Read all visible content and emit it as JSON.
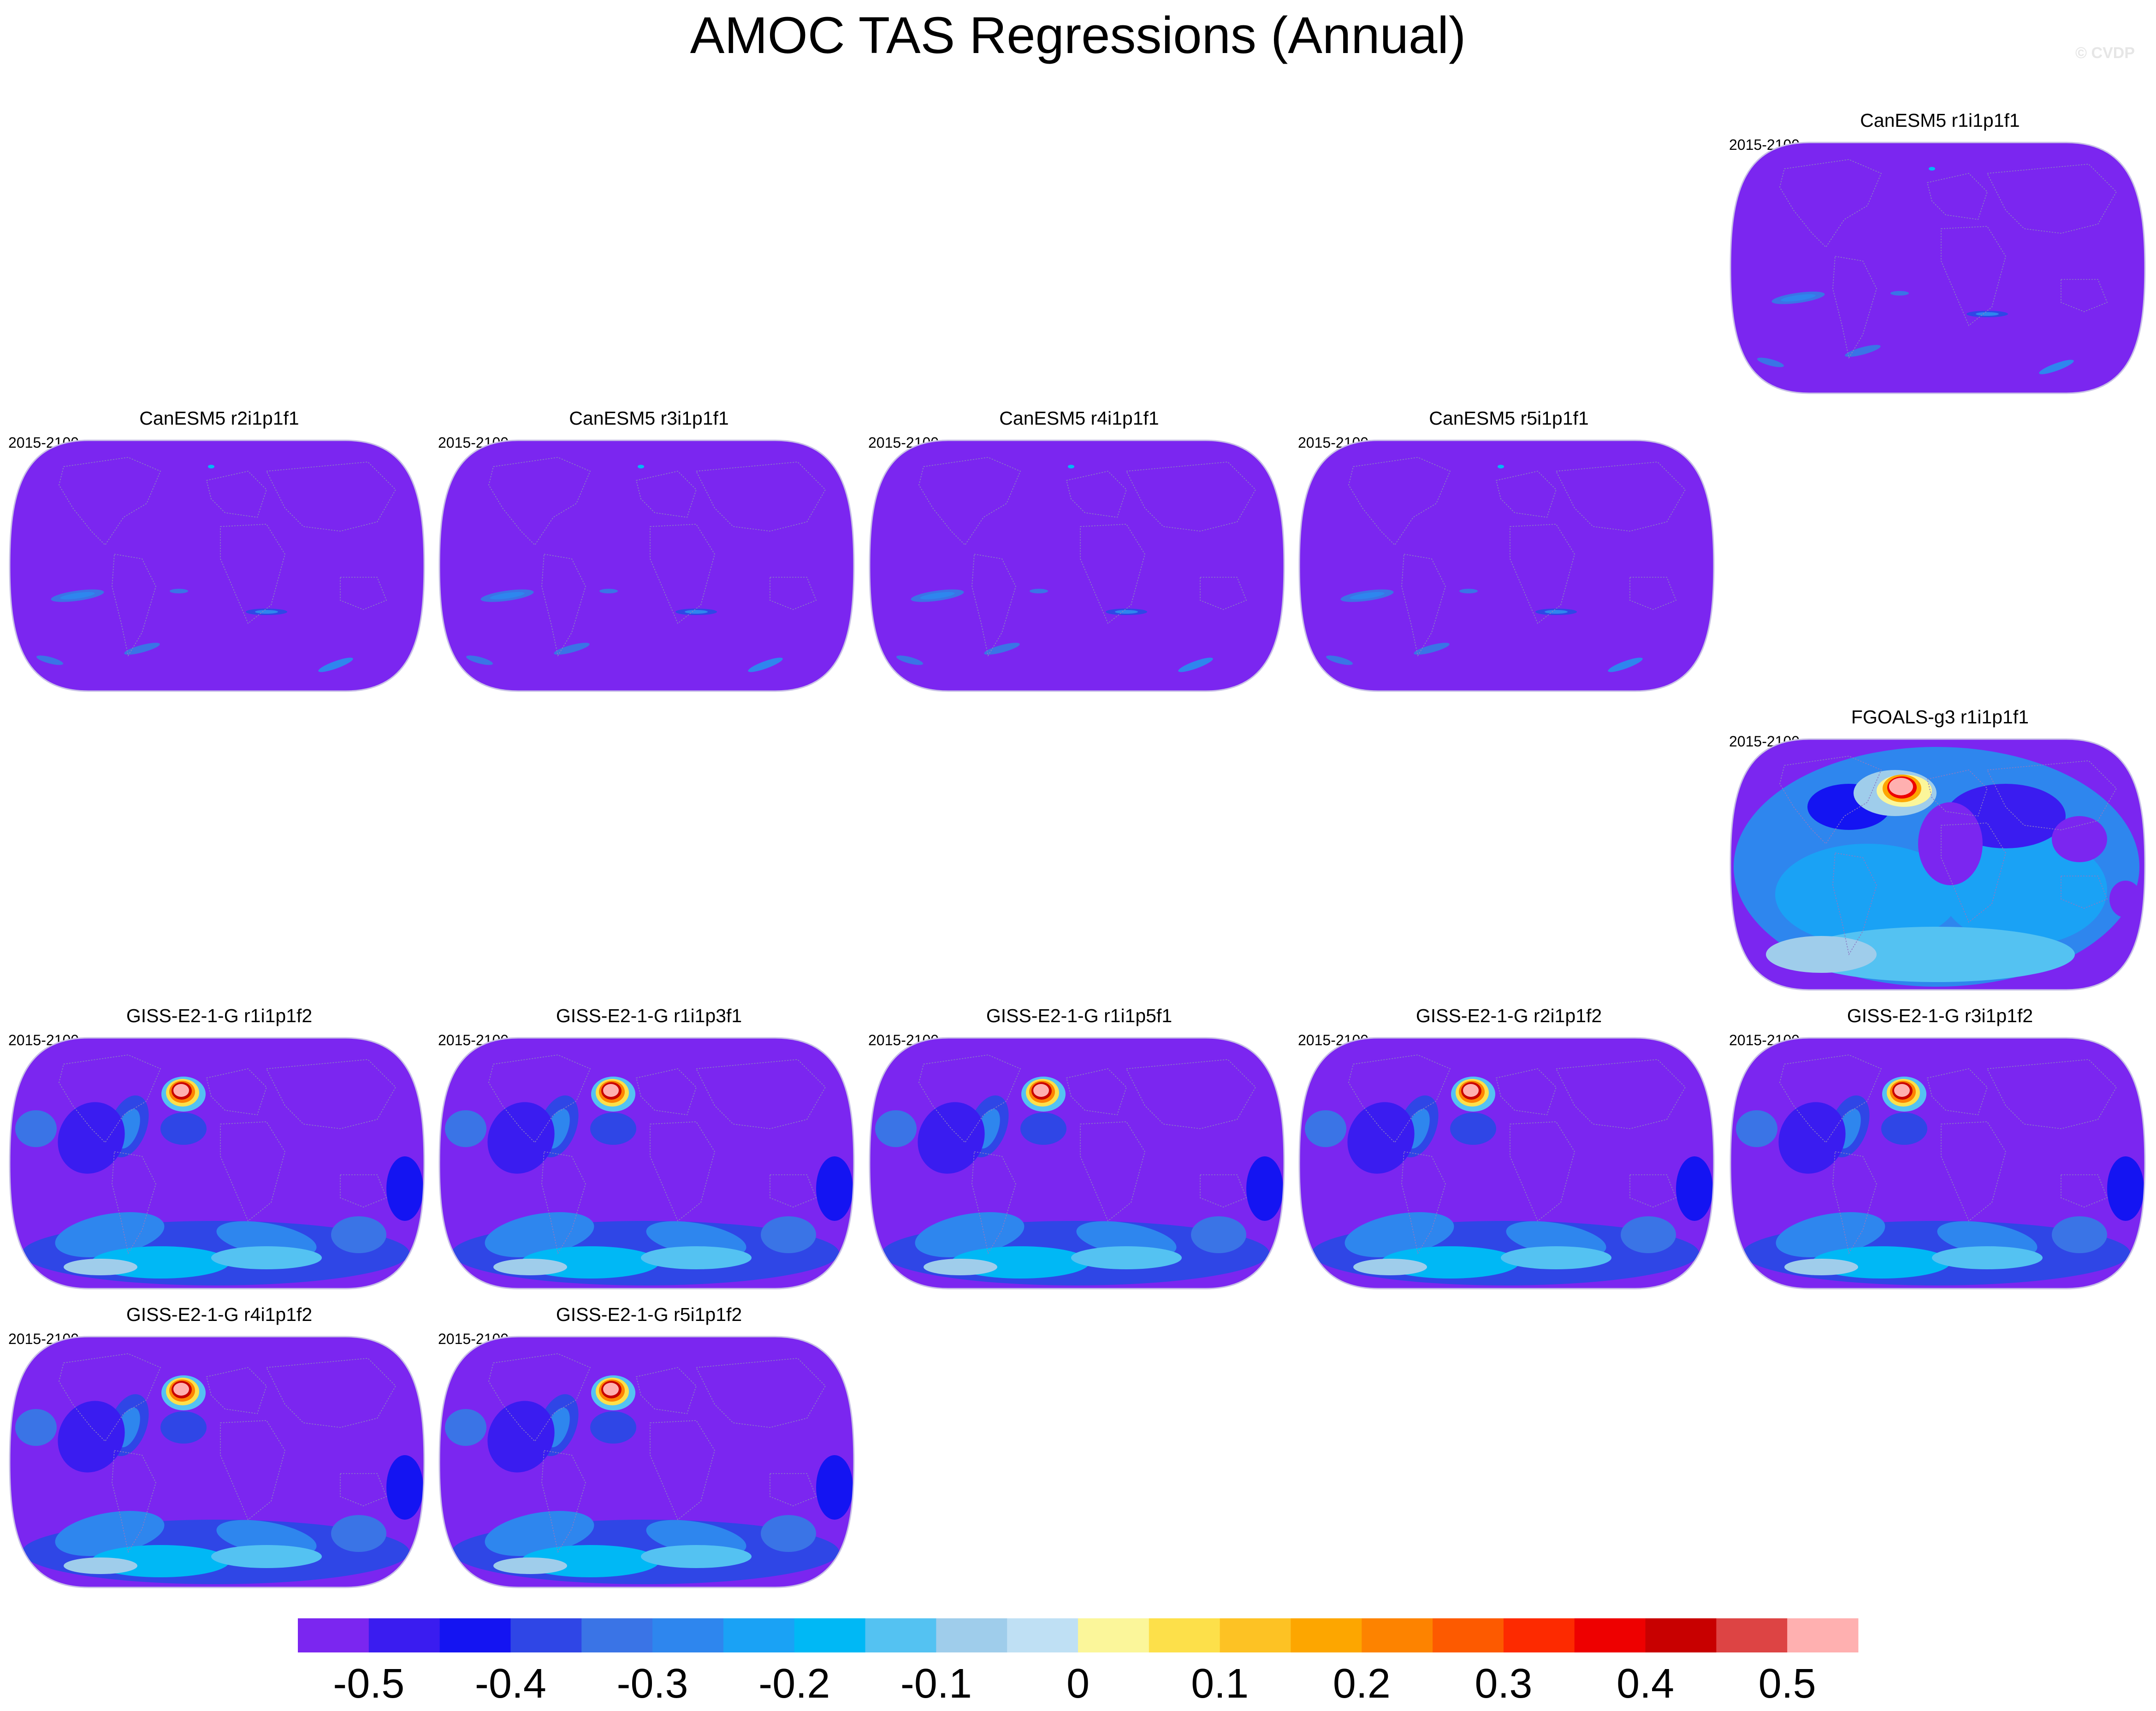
{
  "title": "AMOC TAS Regressions (Annual)",
  "watermark": "© CVDP",
  "chart_data": {
    "type": "heatmap",
    "variable": "TAS regression on AMOC index",
    "projection": "Robinson (global)",
    "units": "",
    "colorbar": {
      "levels": [
        -0.5,
        -0.45,
        -0.4,
        -0.35,
        -0.3,
        -0.25,
        -0.2,
        -0.15,
        -0.1,
        -0.05,
        0,
        0.05,
        0.1,
        0.15,
        0.2,
        0.25,
        0.3,
        0.35,
        0.4,
        0.45,
        0.5
      ],
      "labels": [
        "-0.5",
        "-0.4",
        "-0.3",
        "-0.2",
        "-0.1",
        "0",
        "0.1",
        "0.2",
        "0.3",
        "0.4",
        "0.5"
      ],
      "colors": [
        "#7b26f0",
        "#3a1cf0",
        "#1414f2",
        "#2f46e6",
        "#3a74e6",
        "#2e86ee",
        "#1aa2f5",
        "#00b8f5",
        "#54c2f2",
        "#9fcdeb",
        "#bfe0f4",
        "#fbf69a",
        "#fde04a",
        "#fdc224",
        "#fda600",
        "#fd8300",
        "#fd5a00",
        "#fd2a00",
        "#ee0000",
        "#c80000",
        "#dd4444",
        "#ffb0b0"
      ]
    },
    "panels": [
      {
        "title": "CanESM5 r1i1p1f1",
        "period": "2015-2100",
        "pattern": "canesm",
        "row": 0,
        "col": 4
      },
      {
        "title": "CanESM5 r2i1p1f1",
        "period": "2015-2100",
        "pattern": "canesm",
        "row": 1,
        "col": 0
      },
      {
        "title": "CanESM5 r3i1p1f1",
        "period": "2015-2100",
        "pattern": "canesm",
        "row": 1,
        "col": 1
      },
      {
        "title": "CanESM5 r4i1p1f1",
        "period": "2015-2100",
        "pattern": "canesm",
        "row": 1,
        "col": 2
      },
      {
        "title": "CanESM5 r5i1p1f1",
        "period": "2015-2100",
        "pattern": "canesm",
        "row": 1,
        "col": 3
      },
      {
        "title": "FGOALS-g3 r1i1p1f1",
        "period": "2015-2100",
        "pattern": "fgoals",
        "row": 2,
        "col": 4
      },
      {
        "title": "GISS-E2-1-G r1i1p1f2",
        "period": "2015-2100",
        "pattern": "giss",
        "row": 3,
        "col": 0
      },
      {
        "title": "GISS-E2-1-G r1i1p3f1",
        "period": "2015-2100",
        "pattern": "giss",
        "row": 3,
        "col": 1
      },
      {
        "title": "GISS-E2-1-G r1i1p5f1",
        "period": "2015-2100",
        "pattern": "giss",
        "row": 3,
        "col": 2
      },
      {
        "title": "GISS-E2-1-G r2i1p1f2",
        "period": "2015-2100",
        "pattern": "giss",
        "row": 3,
        "col": 3
      },
      {
        "title": "GISS-E2-1-G r3i1p1f2",
        "period": "2015-2100",
        "pattern": "giss",
        "row": 3,
        "col": 4
      },
      {
        "title": "GISS-E2-1-G r4i1p1f2",
        "period": "2015-2100",
        "pattern": "giss",
        "row": 4,
        "col": 0
      },
      {
        "title": "GISS-E2-1-G r5i1p1f2",
        "period": "2015-2100",
        "pattern": "giss",
        "row": 4,
        "col": 1
      }
    ]
  }
}
